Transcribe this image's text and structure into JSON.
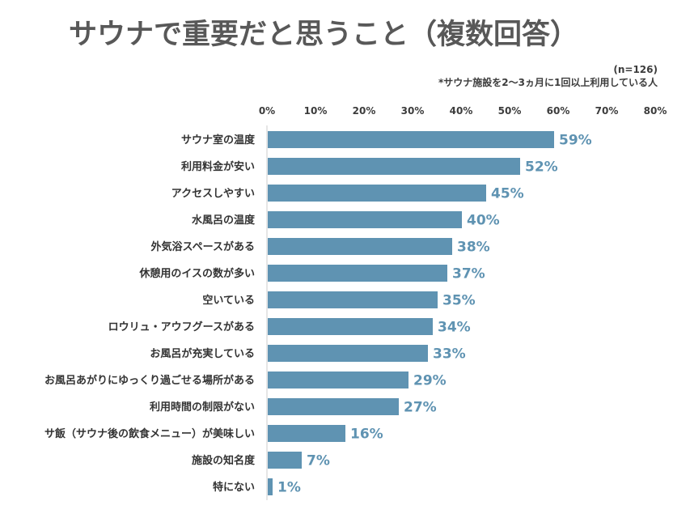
{
  "colors": {
    "bar": "#5f93b2",
    "value_label": "#5f93b2",
    "title": "#585858",
    "text": "#333333",
    "axis": "#cccccc"
  },
  "chart_data": {
    "type": "bar",
    "orientation": "horizontal",
    "title": "サウナで重要だと思うこと（複数回答）",
    "notes": [
      "(n=126)",
      "*サウナ施設を2～3ヵ月に1回以上利用している人"
    ],
    "xlim": [
      0,
      80
    ],
    "x_ticks": [
      "0%",
      "10%",
      "20%",
      "30%",
      "40%",
      "50%",
      "60%",
      "70%",
      "80%"
    ],
    "grid": false,
    "categories": [
      "サウナ室の温度",
      "利用料金が安い",
      "アクセスしやすい",
      "水風呂の温度",
      "外気浴スペースがある",
      "休憩用のイスの数が多い",
      "空いている",
      "ロウリュ・アウフグースがある",
      "お風呂が充実している",
      "お風呂あがりにゆっくり過ごせる場所がある",
      "利用時間の制限がない",
      "サ飯（サウナ後の飲食メニュー）が美味しい",
      "施設の知名度",
      "特にない"
    ],
    "values": [
      59,
      52,
      45,
      40,
      38,
      37,
      35,
      34,
      33,
      29,
      27,
      16,
      7,
      1
    ],
    "value_labels": [
      "59%",
      "52%",
      "45%",
      "40%",
      "38%",
      "37%",
      "35%",
      "34%",
      "33%",
      "29%",
      "27%",
      "16%",
      "7%",
      "1%"
    ]
  }
}
